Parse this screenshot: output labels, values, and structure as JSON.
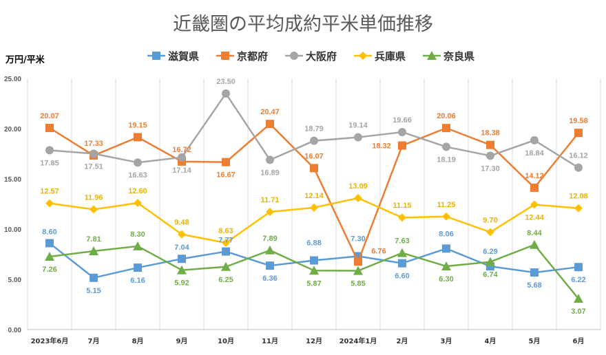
{
  "chart_data": {
    "type": "line",
    "title": "近畿圏の平均成約平米単価推移",
    "ylabel": "万円/平米",
    "xlabel": "",
    "ylim": [
      0,
      25
    ],
    "yticks": [
      "0.00",
      "5.00",
      "10.00",
      "15.00",
      "20.00",
      "25.00"
    ],
    "categories": [
      "2023年6月",
      "7月",
      "8月",
      "9月",
      "10月",
      "11月",
      "12月",
      "2024年1月",
      "2月",
      "3月",
      "4月",
      "5月",
      "6月"
    ],
    "grid": "vertical",
    "legend_position": "top",
    "series": [
      {
        "name": "滋賀県",
        "color": "#5B9BD5",
        "marker": "square",
        "values": [
          8.6,
          5.15,
          6.16,
          7.04,
          7.77,
          6.36,
          6.88,
          7.3,
          6.6,
          8.06,
          6.29,
          5.68,
          6.22
        ]
      },
      {
        "name": "京都府",
        "color": "#ED7D31",
        "marker": "square",
        "values": [
          20.07,
          17.33,
          19.15,
          16.72,
          16.67,
          20.47,
          16.07,
          6.76,
          18.32,
          20.06,
          18.38,
          14.12,
          19.58
        ]
      },
      {
        "name": "大阪府",
        "color": "#A5A5A5",
        "marker": "circle",
        "values": [
          17.85,
          17.51,
          16.63,
          17.14,
          23.5,
          16.89,
          18.79,
          19.14,
          19.66,
          18.19,
          17.3,
          18.84,
          16.12
        ]
      },
      {
        "name": "兵庫県",
        "color": "#FFC000",
        "marker": "diamond",
        "values": [
          12.57,
          11.96,
          12.6,
          9.48,
          8.63,
          11.71,
          12.14,
          13.09,
          11.15,
          11.25,
          9.7,
          12.44,
          12.08
        ]
      },
      {
        "name": "奈良県",
        "color": "#70AD47",
        "marker": "triangle",
        "values": [
          7.26,
          7.81,
          8.3,
          5.92,
          6.25,
          7.89,
          5.87,
          5.85,
          7.63,
          6.3,
          6.74,
          8.44,
          3.07
        ]
      }
    ]
  }
}
